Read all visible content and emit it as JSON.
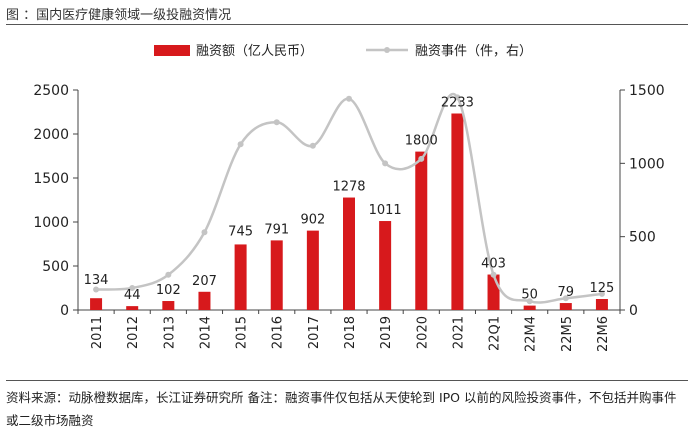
{
  "figure_title": "图  ：国内医疗健康领域一级投融资情况",
  "source_note": "资料来源：动脉橙数据库，长江证券研究所  备注：融资事件仅包括从天使轮到 IPO 以前的风险投资事件，不包括并购事件或二级市场融资",
  "colors": {
    "bar": "#d7191c",
    "line": "#c4c4c4",
    "axis": "#444444",
    "text": "#222222"
  },
  "chart_data": {
    "type": "bar",
    "categories": [
      "2011",
      "2012",
      "2013",
      "2014",
      "2015",
      "2016",
      "2017",
      "2018",
      "2019",
      "2020",
      "2021",
      "22Q1",
      "22M4",
      "22M5",
      "22M6"
    ],
    "series": [
      {
        "name": "融资额（亿人民币）",
        "type": "bar",
        "axis": "left",
        "values": [
          134,
          44,
          102,
          207,
          745,
          791,
          902,
          1278,
          1011,
          1800,
          2233,
          403,
          50,
          79,
          125
        ],
        "labels": [
          "134",
          "44",
          "102",
          "207",
          "745",
          "791",
          "902",
          "1278",
          "1011",
          "1800",
          "2233",
          "403",
          "50",
          "79",
          "125"
        ]
      },
      {
        "name": "融资事件（件，右）",
        "type": "line",
        "axis": "right",
        "values": [
          140,
          150,
          240,
          530,
          1130,
          1280,
          1120,
          1440,
          1000,
          1030,
          1450,
          240,
          60,
          80,
          110
        ]
      }
    ],
    "y_left": {
      "min": 0,
      "max": 2500,
      "ticks": [
        "0",
        "500",
        "1000",
        "1500",
        "2000",
        "2500"
      ]
    },
    "y_right": {
      "min": 0,
      "max": 1500,
      "ticks": [
        "0",
        "500",
        "1000",
        "1500"
      ]
    },
    "grid": false,
    "legend_position": "top"
  }
}
